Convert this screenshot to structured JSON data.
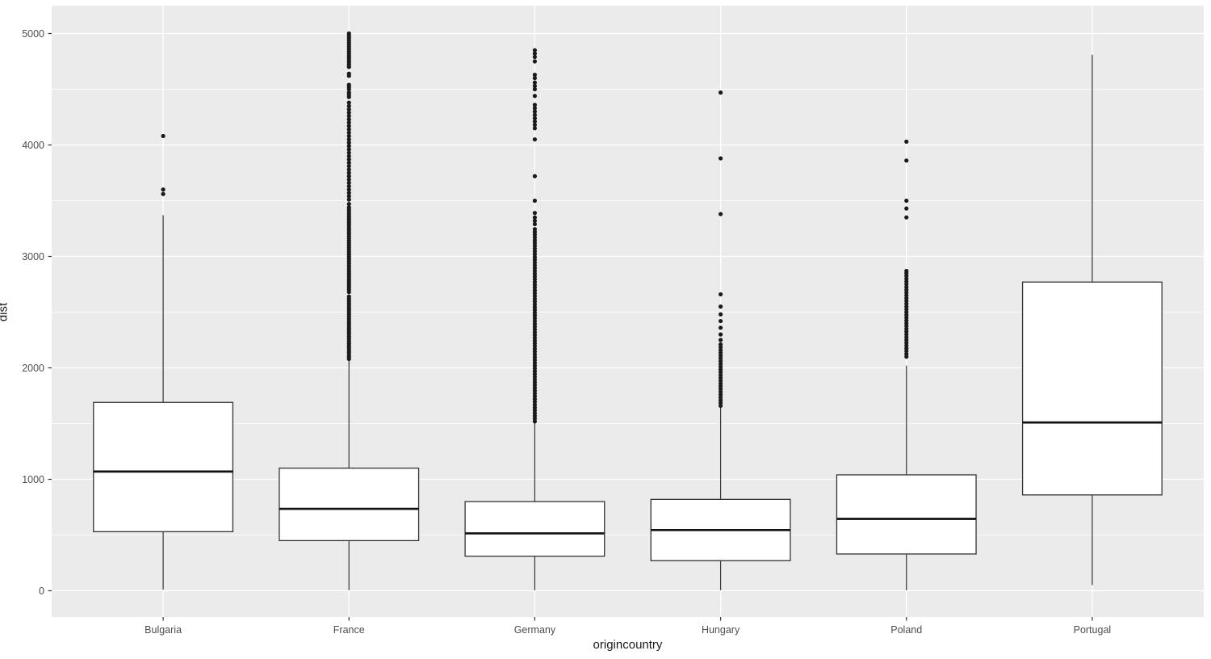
{
  "chart_data": {
    "type": "boxplot",
    "title": "",
    "xlabel": "origincountry",
    "ylabel": "dist",
    "categories": [
      "Bulgaria",
      "France",
      "Germany",
      "Hungary",
      "Poland",
      "Portugal"
    ],
    "y_axis": {
      "min": 0,
      "max": 5000,
      "major_ticks": [
        0,
        1000,
        2000,
        3000,
        4000,
        5000
      ],
      "minor_ticks": [
        500,
        1500,
        2500,
        3500,
        4500
      ]
    },
    "grid": true,
    "legend": "none",
    "series": [
      {
        "category": "Bulgaria",
        "whisker_low": 10,
        "q1": 530,
        "median": 1070,
        "q3": 1690,
        "whisker_high": 3370,
        "outliers": [
          3560,
          3600,
          4080
        ]
      },
      {
        "category": "France",
        "whisker_low": 5,
        "q1": 450,
        "median": 735,
        "q3": 1100,
        "whisker_high": 2080,
        "outliers": [
          2080,
          2100,
          2120,
          2140,
          2160,
          2180,
          2200,
          2220,
          2240,
          2260,
          2280,
          2300,
          2320,
          2340,
          2360,
          2380,
          2400,
          2420,
          2440,
          2460,
          2480,
          2500,
          2520,
          2540,
          2560,
          2580,
          2600,
          2620,
          2640,
          2680,
          2700,
          2720,
          2740,
          2760,
          2780,
          2800,
          2820,
          2840,
          2860,
          2880,
          2900,
          2920,
          2940,
          2960,
          2980,
          3000,
          3020,
          3040,
          3060,
          3080,
          3100,
          3120,
          3140,
          3160,
          3180,
          3200,
          3220,
          3240,
          3260,
          3280,
          3300,
          3320,
          3340,
          3360,
          3380,
          3400,
          3420,
          3440,
          3470,
          3510,
          3540,
          3570,
          3600,
          3630,
          3660,
          3690,
          3720,
          3750,
          3780,
          3810,
          3840,
          3870,
          3900,
          3930,
          3960,
          3990,
          4020,
          4050,
          4080,
          4110,
          4140,
          4170,
          4200,
          4230,
          4260,
          4290,
          4320,
          4350,
          4380,
          4430,
          4450,
          4470,
          4500,
          4520,
          4540,
          4620,
          4640,
          4700,
          4720,
          4740,
          4760,
          4780,
          4800,
          4820,
          4840,
          4860,
          4880,
          4900,
          4920,
          4940,
          4960,
          4980,
          5000
        ]
      },
      {
        "category": "Germany",
        "whisker_low": 5,
        "q1": 310,
        "median": 515,
        "q3": 800,
        "whisker_high": 1520,
        "outliers": [
          1520,
          1545,
          1570,
          1595,
          1620,
          1645,
          1670,
          1695,
          1720,
          1745,
          1770,
          1795,
          1820,
          1845,
          1870,
          1895,
          1920,
          1945,
          1970,
          1995,
          2020,
          2045,
          2070,
          2095,
          2120,
          2145,
          2170,
          2195,
          2220,
          2245,
          2270,
          2295,
          2320,
          2345,
          2370,
          2395,
          2420,
          2445,
          2470,
          2495,
          2520,
          2545,
          2570,
          2595,
          2620,
          2645,
          2670,
          2695,
          2720,
          2745,
          2770,
          2795,
          2820,
          2845,
          2870,
          2895,
          2920,
          2945,
          2970,
          2995,
          3020,
          3045,
          3070,
          3095,
          3120,
          3145,
          3170,
          3195,
          3220,
          3245,
          3290,
          3320,
          3350,
          3390,
          3500,
          3720,
          4050,
          4150,
          4180,
          4210,
          4240,
          4270,
          4300,
          4330,
          4360,
          4440,
          4500,
          4530,
          4560,
          4600,
          4630,
          4750,
          4790,
          4820,
          4850
        ]
      },
      {
        "category": "Hungary",
        "whisker_low": 5,
        "q1": 270,
        "median": 545,
        "q3": 820,
        "whisker_high": 1660,
        "outliers": [
          1660,
          1685,
          1710,
          1735,
          1760,
          1785,
          1810,
          1835,
          1860,
          1885,
          1910,
          1935,
          1960,
          1985,
          2010,
          2035,
          2060,
          2085,
          2110,
          2135,
          2160,
          2185,
          2210,
          2250,
          2300,
          2360,
          2420,
          2480,
          2550,
          2660,
          3380,
          3880,
          4470
        ]
      },
      {
        "category": "Poland",
        "whisker_low": 5,
        "q1": 330,
        "median": 645,
        "q3": 1040,
        "whisker_high": 2020,
        "outliers": [
          2100,
          2125,
          2150,
          2175,
          2200,
          2225,
          2250,
          2275,
          2300,
          2325,
          2350,
          2375,
          2400,
          2425,
          2450,
          2475,
          2500,
          2525,
          2550,
          2575,
          2600,
          2625,
          2650,
          2675,
          2700,
          2725,
          2750,
          2775,
          2800,
          2825,
          2850,
          2870,
          3350,
          3430,
          3500,
          3860,
          4030
        ]
      },
      {
        "category": "Portugal",
        "whisker_low": 50,
        "q1": 860,
        "median": 1510,
        "q3": 2770,
        "whisker_high": 4810,
        "outliers": []
      }
    ],
    "style": {
      "panel_bg": "#ebebeb",
      "grid_major": "#ffffff",
      "grid_minor": "#f5f5f5",
      "box_fill": "#ffffff",
      "box_stroke": "#333333",
      "median_color": "#111111",
      "whisker_color": "#333333",
      "outlier_color": "#1a1a1a",
      "tick_color": "#333333",
      "tick_label_color": "#4d4d4d",
      "axis_title_color": "#1a1a1a"
    }
  }
}
